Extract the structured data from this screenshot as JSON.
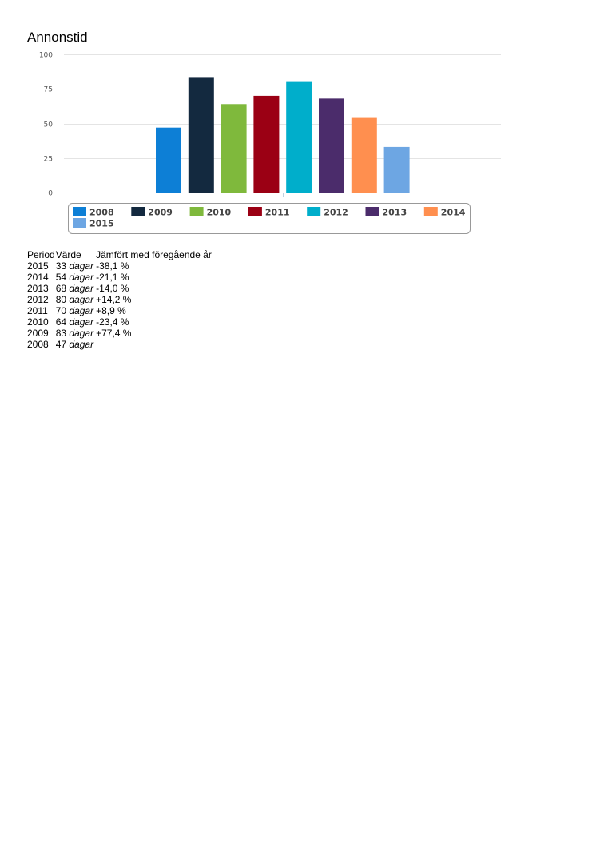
{
  "title": "Annonstid",
  "chart_data": {
    "type": "bar",
    "title": "Annonstid",
    "xlabel": "",
    "ylabel": "",
    "ylim": [
      0,
      100
    ],
    "yticks": [
      0,
      25,
      50,
      75,
      100
    ],
    "grid": true,
    "legend_position": "bottom",
    "series": [
      {
        "name": "2008",
        "value": 47,
        "color": "#0d7fd6"
      },
      {
        "name": "2009",
        "value": 83,
        "color": "#13293f"
      },
      {
        "name": "2010",
        "value": 64,
        "color": "#7fb93c"
      },
      {
        "name": "2011",
        "value": 70,
        "color": "#9b0014"
      },
      {
        "name": "2012",
        "value": 80,
        "color": "#00aecb"
      },
      {
        "name": "2013",
        "value": 68,
        "color": "#4b2c6b"
      },
      {
        "name": "2014",
        "value": 54,
        "color": "#ff8f4f"
      },
      {
        "name": "2015",
        "value": 33,
        "color": "#6da6e3"
      }
    ]
  },
  "table": {
    "headers": {
      "period": "Period",
      "value": "Värde",
      "compare": "Jämfört med föregående år"
    },
    "rows": [
      {
        "period": "2015",
        "value": "33",
        "unit": "dagar",
        "change": "-38,1 %"
      },
      {
        "period": "2014",
        "value": "54",
        "unit": "dagar",
        "change": "-21,1 %"
      },
      {
        "period": "2013",
        "value": "68",
        "unit": "dagar",
        "change": "-14,0 %"
      },
      {
        "period": "2012",
        "value": "80",
        "unit": "dagar",
        "change": "+14,2 %"
      },
      {
        "period": "2011",
        "value": "70",
        "unit": "dagar",
        "change": "+8,9 %"
      },
      {
        "period": "2010",
        "value": "64",
        "unit": "dagar",
        "change": "-23,4 %"
      },
      {
        "period": "2009",
        "value": "83",
        "unit": "dagar",
        "change": "+77,4 %"
      },
      {
        "period": "2008",
        "value": "47",
        "unit": "dagar",
        "change": ""
      }
    ]
  }
}
